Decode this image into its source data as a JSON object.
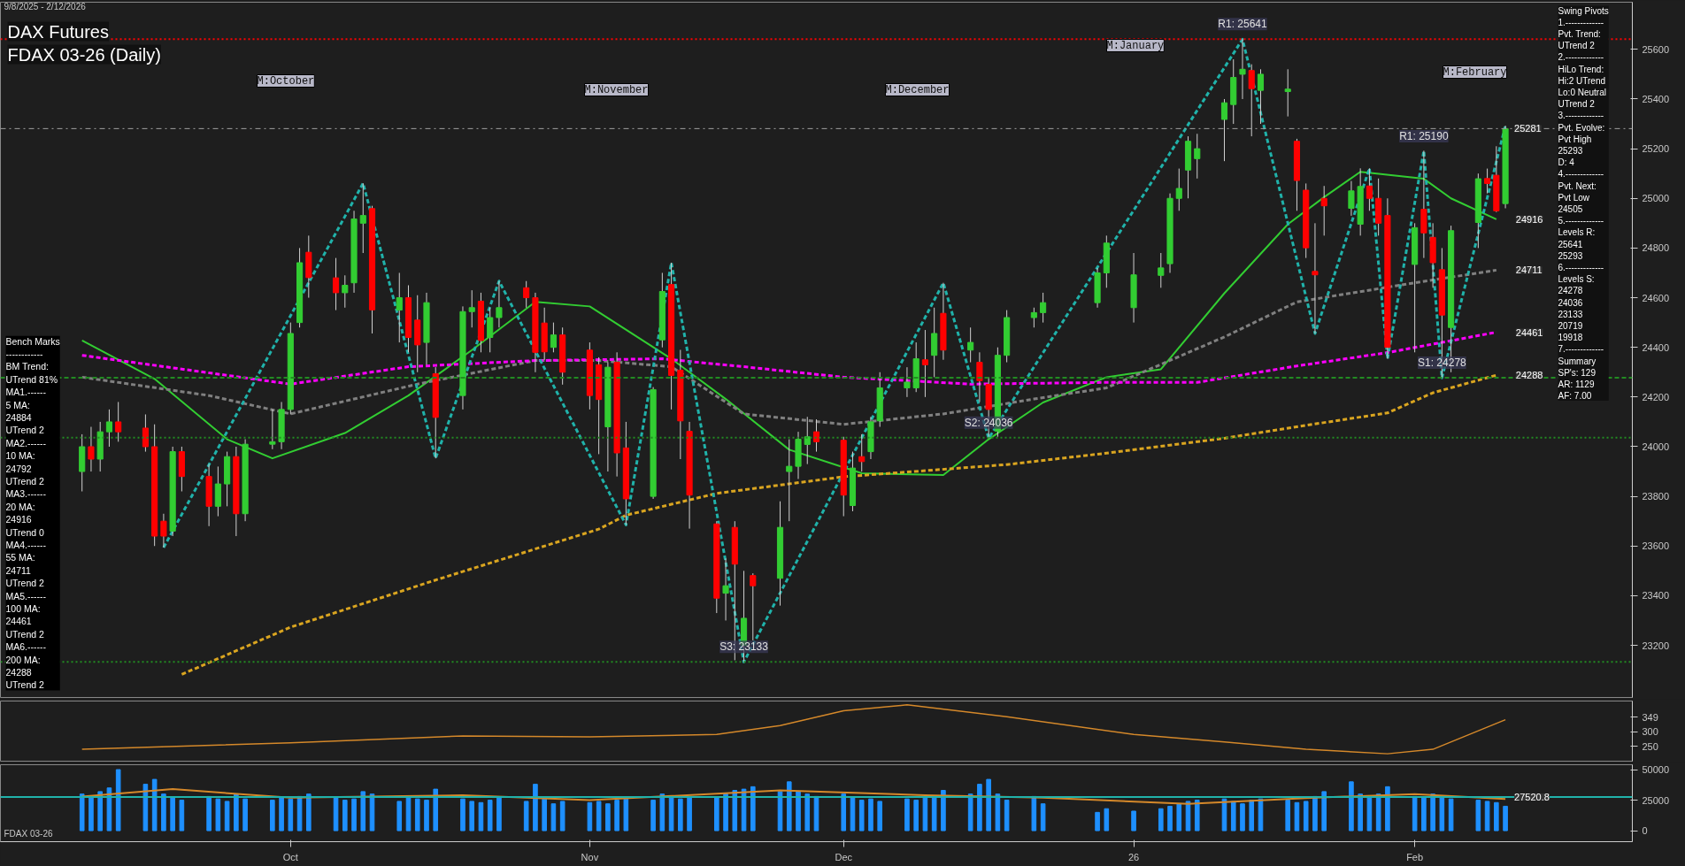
{
  "chart_data": [
    {
      "type": "candlestick",
      "title": "DAX Futures",
      "subtitle": "FDAX 03-26 (Daily)",
      "x": [
        "2025-09-08",
        "2025-09-09",
        "2025-09-10",
        "2025-09-11",
        "2025-09-12",
        "2025-09-15",
        "2025-09-16",
        "2025-09-17",
        "2025-09-18",
        "2025-09-19",
        "2025-09-22",
        "2025-09-23",
        "2025-09-24",
        "2025-09-25",
        "2025-09-26",
        "2025-09-29",
        "2025-09-30",
        "2025-10-01",
        "2025-10-02",
        "2025-10-03",
        "2025-10-06",
        "2025-10-07",
        "2025-10-08",
        "2025-10-09",
        "2025-10-10",
        "2025-10-13",
        "2025-10-14",
        "2025-10-15",
        "2025-10-16",
        "2025-10-17",
        "2025-10-20",
        "2025-10-21",
        "2025-10-22",
        "2025-10-23",
        "2025-10-24",
        "2025-10-27",
        "2025-10-28",
        "2025-10-29",
        "2025-10-30",
        "2025-10-31",
        "2025-11-03",
        "2025-11-04",
        "2025-11-05",
        "2025-11-06",
        "2025-11-07",
        "2025-11-10",
        "2025-11-11",
        "2025-11-12",
        "2025-11-13",
        "2025-11-14",
        "2025-11-17",
        "2025-11-18",
        "2025-11-19",
        "2025-11-20",
        "2025-11-21",
        "2025-11-24",
        "2025-11-25",
        "2025-11-26",
        "2025-11-27",
        "2025-11-28",
        "2025-12-01",
        "2025-12-02",
        "2025-12-03",
        "2025-12-04",
        "2025-12-05",
        "2025-12-08",
        "2025-12-09",
        "2025-12-10",
        "2025-12-11",
        "2025-12-12",
        "2025-12-15",
        "2025-12-16",
        "2025-12-17",
        "2025-12-18",
        "2025-12-19",
        "2025-12-22",
        "2025-12-23",
        "2025-12-29",
        "2025-12-30",
        "2026-01-02",
        "2026-01-05",
        "2026-01-06",
        "2026-01-07",
        "2026-01-08",
        "2026-01-09",
        "2026-01-12",
        "2026-01-13",
        "2026-01-14",
        "2026-01-15",
        "2026-01-16",
        "2026-01-19",
        "2026-01-20",
        "2026-01-21",
        "2026-01-22",
        "2026-01-23",
        "2026-01-26",
        "2026-01-27",
        "2026-01-28",
        "2026-01-29",
        "2026-01-30",
        "2026-02-02",
        "2026-02-03",
        "2026-02-04",
        "2026-02-05",
        "2026-02-06",
        "2026-02-09",
        "2026-02-10",
        "2026-02-11",
        "2026-02-12"
      ],
      "ohlc": [
        [
          23900,
          24050,
          23820,
          24000
        ],
        [
          24000,
          24080,
          23900,
          23950
        ],
        [
          23950,
          24100,
          23900,
          24060
        ],
        [
          24060,
          24150,
          24000,
          24100
        ],
        [
          24100,
          24180,
          24020,
          24060
        ],
        [
          24075,
          24130,
          23980,
          24000
        ],
        [
          24000,
          24090,
          23600,
          23640
        ],
        [
          23700,
          23730,
          23594,
          23640
        ],
        [
          23660,
          24000,
          23640,
          23980
        ],
        [
          23980,
          24000,
          23820,
          23880
        ],
        [
          23880,
          23930,
          23680,
          23760
        ],
        [
          23760,
          23920,
          23720,
          23850
        ],
        [
          23850,
          23980,
          23760,
          23960
        ],
        [
          23960,
          24000,
          23640,
          23730
        ],
        [
          23730,
          24030,
          23700,
          24010
        ],
        [
          24010,
          24150,
          23990,
          24020
        ],
        [
          24020,
          24180,
          23990,
          24150
        ],
        [
          24150,
          24500,
          24130,
          24456
        ],
        [
          24500,
          24800,
          24480,
          24741
        ],
        [
          24783,
          24850,
          24600,
          24681
        ],
        [
          24680,
          24760,
          24550,
          24620
        ],
        [
          24620,
          24690,
          24560,
          24650
        ],
        [
          24660,
          24950,
          24620,
          24917
        ],
        [
          24900,
          25061,
          24780,
          24931
        ],
        [
          24959,
          24970,
          24456,
          24551
        ],
        [
          24550,
          24700,
          24420,
          24600
        ],
        [
          24600,
          24650,
          24380,
          24440
        ],
        [
          24510,
          24610,
          24300,
          24410
        ],
        [
          24420,
          24620,
          24330,
          24580
        ],
        [
          24294,
          24320,
          23953,
          24118
        ],
        [
          24206,
          24565,
          24150,
          24544
        ],
        [
          24544,
          24630,
          24480,
          24560
        ],
        [
          24586,
          24620,
          24380,
          24428
        ],
        [
          24440,
          24560,
          24380,
          24520
        ],
        [
          24520,
          24667,
          24480,
          24560
        ],
        [
          24640,
          24667,
          24560,
          24600
        ],
        [
          24600,
          24620,
          24300,
          24380
        ],
        [
          24498,
          24560,
          24350,
          24382
        ],
        [
          24400,
          24500,
          24380,
          24450
        ],
        [
          24450,
          24480,
          24250,
          24300
        ],
        [
          24389,
          24420,
          24150,
          24206
        ],
        [
          24330,
          24360,
          23970,
          24190
        ],
        [
          24080,
          24340,
          23900,
          24320
        ],
        [
          24340,
          24380,
          23880,
          23975
        ],
        [
          23995,
          24100,
          23685,
          23790
        ],
        [
          23800,
          24240,
          23790,
          24230
        ],
        [
          24430,
          24700,
          24400,
          24625
        ],
        [
          24653,
          24741,
          24150,
          24287
        ],
        [
          24308,
          24390,
          23950,
          24104
        ],
        [
          24062,
          24100,
          23670,
          23805
        ],
        [
          23689,
          23700,
          23330,
          23390
        ],
        [
          23410,
          23550,
          23300,
          23440
        ],
        [
          23675,
          23700,
          23140,
          23527
        ],
        [
          23200,
          23500,
          23133,
          23309
        ],
        [
          23481,
          23490,
          23220,
          23440
        ],
        [
          23470,
          23780,
          23360,
          23675
        ],
        [
          23900,
          24030,
          23700,
          23921
        ],
        [
          23921,
          24060,
          23870,
          24030
        ],
        [
          24009,
          24120,
          23930,
          24040
        ],
        [
          24060,
          24110,
          23980,
          24020
        ],
        [
          24026,
          24040,
          23720,
          23805
        ],
        [
          23763,
          23980,
          23740,
          23914
        ],
        [
          23960,
          24050,
          23900,
          23940
        ],
        [
          23980,
          24120,
          23950,
          24100
        ],
        [
          24104,
          24300,
          24080,
          24237
        ],
        [
          24237,
          24320,
          24200,
          24260
        ],
        [
          24237,
          24420,
          24220,
          24354
        ],
        [
          24350,
          24470,
          24200,
          24330
        ],
        [
          24368,
          24560,
          24280,
          24456
        ],
        [
          24537,
          24660,
          24350,
          24389
        ],
        [
          24389,
          24480,
          24340,
          24420
        ],
        [
          24340,
          24380,
          24180,
          24266
        ],
        [
          24251,
          24280,
          24034,
          24150
        ],
        [
          24062,
          24400,
          24040,
          24368
        ],
        [
          24368,
          24550,
          24340,
          24520
        ],
        [
          24520,
          24560,
          24480,
          24540
        ],
        [
          24540,
          24620,
          24500,
          24580
        ],
        [
          24580,
          24720,
          24560,
          24700
        ],
        [
          24700,
          24850,
          24640,
          24820
        ],
        [
          24560,
          24780,
          24500,
          24692
        ],
        [
          24690,
          24780,
          24640,
          24720
        ],
        [
          24737,
          25020,
          24700,
          25000
        ],
        [
          25000,
          25120,
          24950,
          25040
        ],
        [
          25114,
          25250,
          25000,
          25230
        ],
        [
          25160,
          25260,
          25080,
          25200
        ],
        [
          25318,
          25400,
          25150,
          25385
        ],
        [
          25378,
          25560,
          25300,
          25487
        ],
        [
          25500,
          25641,
          25400,
          25520
        ],
        [
          25515,
          25540,
          25250,
          25442
        ],
        [
          25435,
          25520,
          25300,
          25500
        ],
        [
          25430,
          25520,
          25330,
          25440
        ],
        [
          25230,
          25240,
          24950,
          25072
        ],
        [
          25033,
          25060,
          24760,
          24801
        ],
        [
          24706,
          24900,
          24456,
          24692
        ],
        [
          25000,
          25050,
          24850,
          24970
        ],
        [
          24960,
          25070,
          24930,
          25030
        ],
        [
          24896,
          25121,
          24850,
          25048
        ],
        [
          25050,
          25121,
          24950,
          25000
        ],
        [
          25000,
          25080,
          24850,
          24900
        ],
        [
          24931,
          25000,
          24354,
          24400
        ],
        [
          24734,
          24900,
          24380,
          24882
        ],
        [
          24956,
          25192,
          24760,
          24861
        ],
        [
          24843,
          24900,
          24640,
          24741
        ],
        [
          24713,
          24800,
          24277,
          24530
        ],
        [
          24480,
          24890,
          24300,
          24870
        ],
        [
          24903,
          25100,
          24800,
          25079
        ],
        [
          25080,
          25120,
          25020,
          25060
        ],
        [
          25093,
          25210,
          24945,
          24950
        ],
        [
          24979,
          25293,
          24960,
          25281
        ]
      ],
      "series": [
        {
          "type": "line",
          "color": "#32cd32",
          "line_style": "solid",
          "x": [
            "2025-09-08",
            "2025-09-16",
            "2025-09-24",
            "2025-09-29",
            "2025-10-07",
            "2025-10-14",
            "2025-10-21",
            "2025-10-28",
            "2025-11-03",
            "2025-11-12",
            "2025-11-18",
            "2025-11-25",
            "2025-12-03",
            "2025-12-12",
            "2025-12-17",
            "2025-12-23",
            "2025-12-30",
            "2026-01-05",
            "2026-01-12",
            "2026-01-19",
            "2026-01-23",
            "2026-01-27",
            "2026-02-03",
            "2026-02-06",
            "2026-02-11"
          ],
          "values": [
            24428,
            24273,
            24030,
            23953,
            24055,
            24206,
            24389,
            24583,
            24565,
            24354,
            24192,
            23988,
            23893,
            23886,
            24030,
            24178,
            24280,
            24312,
            24618,
            24896,
            25005,
            25107,
            25079,
            25000,
            24916
          ]
        },
        {
          "type": "line",
          "color": "#808080",
          "line_style": "dashed",
          "x": [
            "2025-09-08",
            "2025-09-22",
            "2025-10-01",
            "2025-10-15",
            "2025-10-28",
            "2025-11-04",
            "2025-11-12",
            "2025-11-20",
            "2025-12-01",
            "2025-12-12",
            "2025-12-22",
            "2025-12-30",
            "2026-01-12",
            "2026-01-20",
            "2026-02-02",
            "2026-02-11"
          ],
          "values": [
            24280,
            24206,
            24132,
            24252,
            24347,
            24347,
            24322,
            24132,
            24090,
            24132,
            24192,
            24237,
            24442,
            24583,
            24660,
            24711
          ]
        },
        {
          "type": "line",
          "color": "#ff00ff",
          "line_style": "dashed",
          "x": [
            "2025-09-08",
            "2025-10-01",
            "2025-10-14",
            "2025-10-28",
            "2025-11-11",
            "2025-11-20",
            "2025-12-01",
            "2025-12-15",
            "2025-12-30",
            "2026-01-09",
            "2026-01-20",
            "2026-01-30",
            "2026-02-11"
          ],
          "values": [
            24368,
            24252,
            24322,
            24347,
            24354,
            24322,
            24280,
            24252,
            24259,
            24259,
            24325,
            24379,
            24461
          ]
        },
        {
          "type": "line",
          "color": "#daa520",
          "line_style": "dashed",
          "x": [
            "2025-09-19",
            "2025-10-01",
            "2025-10-17",
            "2025-11-04",
            "2025-11-07",
            "2025-11-17",
            "2025-12-01",
            "2025-12-19",
            "2025-12-30",
            "2026-01-12",
            "2026-01-21",
            "2026-01-30",
            "2026-02-04",
            "2026-02-11"
          ],
          "values": [
            23083,
            23273,
            23463,
            23668,
            23724,
            23812,
            23879,
            23928,
            23974,
            24034,
            24086,
            24136,
            24217,
            24288
          ]
        },
        {
          "type": "line",
          "color": "#20b2aa",
          "line_style": "dashed",
          "x": [
            "2025-09-17",
            "2025-10-09",
            "2025-10-17",
            "2025-10-24",
            "2025-11-07",
            "2025-11-12",
            "2025-11-20",
            "2025-12-12",
            "2025-12-17",
            "2026-01-14",
            "2026-01-22",
            "2026-01-28",
            "2026-01-30",
            "2026-02-03",
            "2026-02-05",
            "2026-02-12"
          ],
          "values": [
            23594,
            25061,
            23953,
            24667,
            23685,
            24741,
            23133,
            24660,
            24034,
            25641,
            24456,
            25121,
            24354,
            25192,
            24277,
            25293
          ]
        }
      ],
      "ref_lines": [
        {
          "axis": "y",
          "value": 25641,
          "color": "#ff0000",
          "line_style": "dotted"
        },
        {
          "axis": "y",
          "value": 25281,
          "color": "#a0a0a0",
          "line_style": "dashdot",
          "label": "25281"
        },
        {
          "axis": "y",
          "value": 24278,
          "color": "#228b22",
          "line_style": "dashed"
        },
        {
          "axis": "y",
          "value": 24036,
          "color": "#228b22",
          "line_style": "dotted"
        },
        {
          "axis": "y",
          "value": 23133,
          "color": "#228b22",
          "line_style": "dotted"
        }
      ],
      "annotations": [
        "9/8/2025 - 2/12/2026",
        "Bench Marks\n------------\nBM Trend:\nUTrend 81%\nMA1.------\n5 MA:\n24884\nUTrend 2\nMA2.------\n10 MA:\n24792\nUTrend 2\nMA3.------\n20 MA:\n24916\nUTrend 0\nMA4.------\n55 MA:\n24711\nUTrend 2\nMA5.------\n100 MA:\n24461\nUTrend 2\nMA6.------\n200 MA:\n24288\nUTrend 2",
        "Swing Pivots\n1.-------------\nPvt. Trend:\nUTrend 2\n2.-------------\nHiLo Trend:\nHi:2 UTrend\nLo:0 Neutral\nUTrend 2\n3.-------------\nPvt. Evolve:\nPvt High\n25293\nD: 4\n4.-------------\nPvt. Next:\nPvt Low\n24505\n5.-------------\nLevels R:\n25641\n25293\n6.-------------\nLevels S:\n24278\n24036\n23133\n20719\n19918\n7.-------------\nSummary\nSP's: 129\nAR: 1129\nAF: 7.00",
        {
          "text": "R1: 25641",
          "x": "2026-01-14",
          "y": 25641
        },
        {
          "text": "R1: 25190",
          "x": "2026-02-03",
          "y": 25190
        },
        {
          "text": "S1: 24278",
          "x": "2026-02-05",
          "y": 24278
        },
        {
          "text": "S2: 24036",
          "x": "2025-12-17",
          "y": 24036
        },
        {
          "text": "S3: 23133",
          "x": "2025-11-20",
          "y": 23133
        },
        "M:October",
        "M:November",
        "M:December",
        "M:January",
        "M:February",
        {
          "text": "24916",
          "x": "2026-02-11",
          "y": 24916
        },
        {
          "text": "24711",
          "x": "2026-02-11",
          "y": 24711
        },
        {
          "text": "24461",
          "x": "2026-02-11",
          "y": 24461
        },
        {
          "text": "24288",
          "x": "2026-02-11",
          "y": 24288
        }
      ],
      "xlim": [
        "2025-08-30",
        "2026-02-26"
      ],
      "ylim": [
        22990,
        25790
      ],
      "yticks": [
        23200,
        23400,
        23600,
        23800,
        24000,
        24200,
        24400,
        24600,
        24800,
        25000,
        25200,
        25400,
        25600
      ],
      "tick_labels": "y",
      "grid": false
    },
    {
      "type": "line",
      "color": "#d4882a",
      "x": [
        "2025-09-08",
        "2025-10-01",
        "2025-10-20",
        "2025-11-03",
        "2025-11-17",
        "2025-11-24",
        "2025-12-01",
        "2025-12-08",
        "2025-12-19",
        "2026-01-02",
        "2026-01-12",
        "2026-01-21",
        "2026-01-30",
        "2026-02-04",
        "2026-02-12"
      ],
      "values": [
        240,
        262,
        285,
        282,
        290,
        320,
        370,
        390,
        350,
        290,
        265,
        240,
        225,
        240,
        340
      ],
      "xlim": [
        "2025-08-30",
        "2026-02-26"
      ],
      "ylim": [
        200,
        403
      ],
      "yticks": [
        250,
        300,
        349
      ],
      "tick_labels": "y",
      "grid": false
    },
    {
      "type": "bar",
      "x": [
        "2025-09-08",
        "2025-09-09",
        "2025-09-10",
        "2025-09-11",
        "2025-09-12",
        "2025-09-15",
        "2025-09-16",
        "2025-09-17",
        "2025-09-18",
        "2025-09-19",
        "2025-09-22",
        "2025-09-23",
        "2025-09-24",
        "2025-09-25",
        "2025-09-26",
        "2025-09-29",
        "2025-09-30",
        "2025-10-01",
        "2025-10-02",
        "2025-10-03",
        "2025-10-06",
        "2025-10-07",
        "2025-10-08",
        "2025-10-09",
        "2025-10-10",
        "2025-10-13",
        "2025-10-14",
        "2025-10-15",
        "2025-10-16",
        "2025-10-17",
        "2025-10-20",
        "2025-10-21",
        "2025-10-22",
        "2025-10-23",
        "2025-10-24",
        "2025-10-27",
        "2025-10-28",
        "2025-10-29",
        "2025-10-30",
        "2025-10-31",
        "2025-11-03",
        "2025-11-04",
        "2025-11-05",
        "2025-11-06",
        "2025-11-07",
        "2025-11-10",
        "2025-11-11",
        "2025-11-12",
        "2025-11-13",
        "2025-11-14",
        "2025-11-17",
        "2025-11-18",
        "2025-11-19",
        "2025-11-20",
        "2025-11-21",
        "2025-11-24",
        "2025-11-25",
        "2025-11-26",
        "2025-11-27",
        "2025-11-28",
        "2025-12-01",
        "2025-12-02",
        "2025-12-03",
        "2025-12-04",
        "2025-12-05",
        "2025-12-08",
        "2025-12-09",
        "2025-12-10",
        "2025-12-11",
        "2025-12-12",
        "2025-12-15",
        "2025-12-16",
        "2025-12-17",
        "2025-12-18",
        "2025-12-19",
        "2025-12-22",
        "2025-12-23",
        "2025-12-29",
        "2025-12-30",
        "2026-01-02",
        "2026-01-05",
        "2026-01-06",
        "2026-01-07",
        "2026-01-08",
        "2026-01-09",
        "2026-01-12",
        "2026-01-13",
        "2026-01-14",
        "2026-01-15",
        "2026-01-16",
        "2026-01-19",
        "2026-01-20",
        "2026-01-21",
        "2026-01-22",
        "2026-01-23",
        "2026-01-26",
        "2026-01-27",
        "2026-01-28",
        "2026-01-29",
        "2026-01-30",
        "2026-02-02",
        "2026-02-03",
        "2026-02-04",
        "2026-02-05",
        "2026-02-06",
        "2026-02-09",
        "2026-02-10",
        "2026-02-11",
        "2026-02-12"
      ],
      "series": [
        {
          "type": "bar",
          "color": "#1e90ff",
          "values": [
            30000,
            28000,
            32000,
            35000,
            50000,
            38000,
            42000,
            30000,
            27000,
            25000,
            28000,
            26000,
            24000,
            30000,
            26000,
            25000,
            27000,
            26000,
            28000,
            30000,
            27000,
            25000,
            26000,
            32000,
            30000,
            24000,
            27000,
            26000,
            25000,
            34000,
            26000,
            24000,
            23000,
            25000,
            27000,
            24000,
            38000,
            26000,
            22000,
            24000,
            23000,
            24000,
            22000,
            25000,
            26000,
            25000,
            30000,
            27000,
            26000,
            28000,
            27000,
            30000,
            33000,
            34000,
            36000,
            32000,
            40000,
            32000,
            30000,
            28000,
            30000,
            27000,
            25000,
            26000,
            24000,
            26000,
            25000,
            27000,
            28000,
            33000,
            30000,
            38000,
            42000,
            30000,
            25000,
            28000,
            22000,
            15000,
            18000,
            16000,
            18000,
            20000,
            22000,
            24000,
            25000,
            26000,
            24000,
            22000,
            25000,
            26000,
            25000,
            23000,
            24000,
            28000,
            32000,
            40000,
            30000,
            28000,
            30000,
            36000,
            28000,
            27000,
            30000,
            28000,
            26000,
            25000,
            24000,
            23000,
            20000
          ]
        },
        {
          "type": "line",
          "color": "#d4882a",
          "x": [
            "2025-09-08",
            "2025-09-18",
            "2025-10-01",
            "2025-10-20",
            "2025-11-03",
            "2025-11-24",
            "2025-12-10",
            "2025-12-23",
            "2026-01-08",
            "2026-01-22",
            "2026-02-02",
            "2026-02-12"
          ],
          "values": [
            28000,
            34000,
            27000,
            29000,
            25000,
            33000,
            29000,
            27000,
            22000,
            27000,
            30000,
            26000
          ]
        }
      ],
      "ref_lines": [
        {
          "axis": "y",
          "value": 27520.8,
          "color": "#20b2aa",
          "line_style": "solid",
          "label": "27520.8"
        }
      ],
      "annotations": [
        "FDAX 03-26"
      ],
      "xlim": [
        "2025-08-30",
        "2026-02-26"
      ],
      "xticks": [
        {
          "value": "2025-10-01",
          "label": "Oct"
        },
        {
          "value": "2025-11-03",
          "label": "Nov"
        },
        {
          "value": "2025-12-01",
          "label": "Dec"
        },
        {
          "value": "2026-01-02",
          "label": "26"
        },
        {
          "value": "2026-02-02",
          "label": "Feb"
        }
      ],
      "ylim": [
        -9000,
        54000
      ],
      "yticks": [
        0,
        25000,
        50000
      ],
      "grid": false
    }
  ]
}
